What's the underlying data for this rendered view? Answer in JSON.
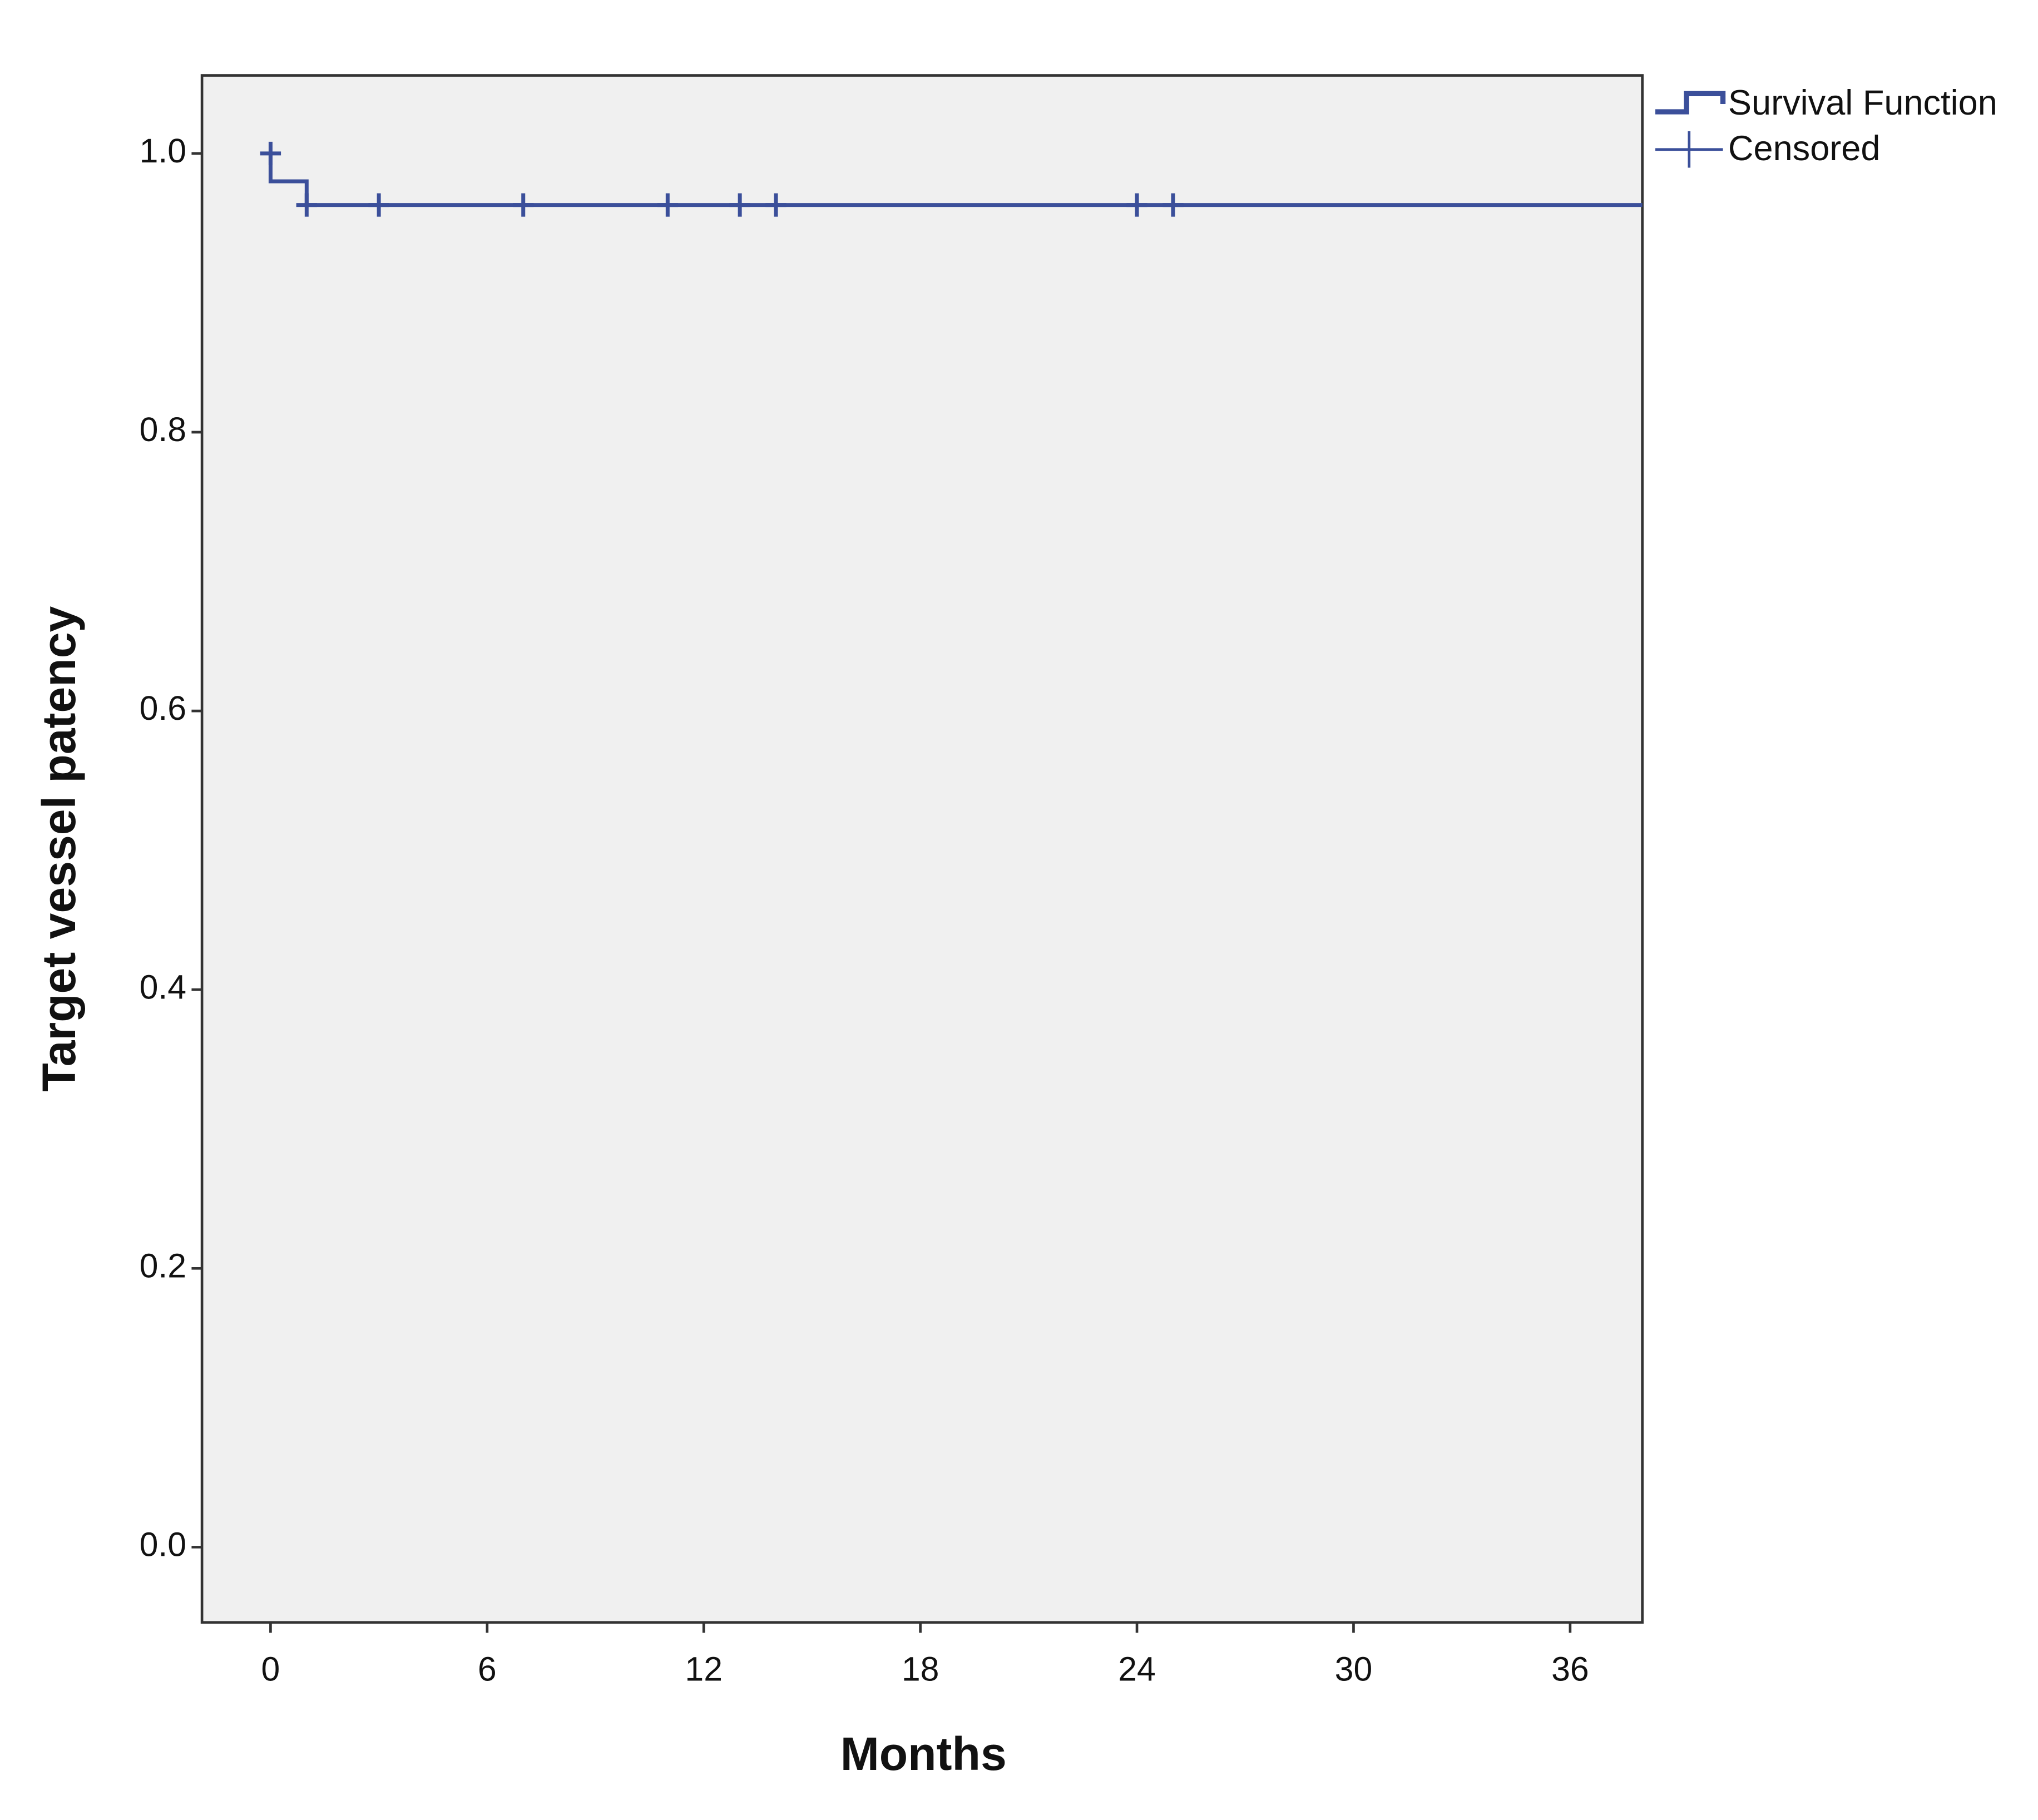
{
  "chart_data": {
    "type": "survival",
    "xlabel": "Months",
    "ylabel": "Target vessel patency",
    "xlim": [
      -1.9,
      38
    ],
    "ylim": [
      -0.054,
      1.056
    ],
    "xticks": [
      0,
      6,
      12,
      18,
      24,
      30,
      36
    ],
    "yticks": [
      {
        "value": 0,
        "label": "0.0"
      },
      0.2,
      0.4,
      0.6,
      0.8,
      {
        "value": 1,
        "label": "1.0"
      }
    ],
    "background": "#f0f0f0",
    "legend": "right",
    "series": [
      {
        "name": "Survival Function",
        "color": "#3b4f9a",
        "x": [
          0,
          0,
          1,
          1,
          38
        ],
        "values": [
          1,
          0.98,
          0.98,
          0.963,
          0.963
        ]
      },
      {
        "name": "Censored",
        "color": "#3b4f9a",
        "x": [
          0,
          1,
          3,
          7,
          11,
          13,
          14,
          24,
          25
        ],
        "values": [
          1,
          0.963,
          0.963,
          0.963,
          0.963,
          0.963,
          0.963,
          0.963,
          0.963
        ]
      }
    ]
  }
}
